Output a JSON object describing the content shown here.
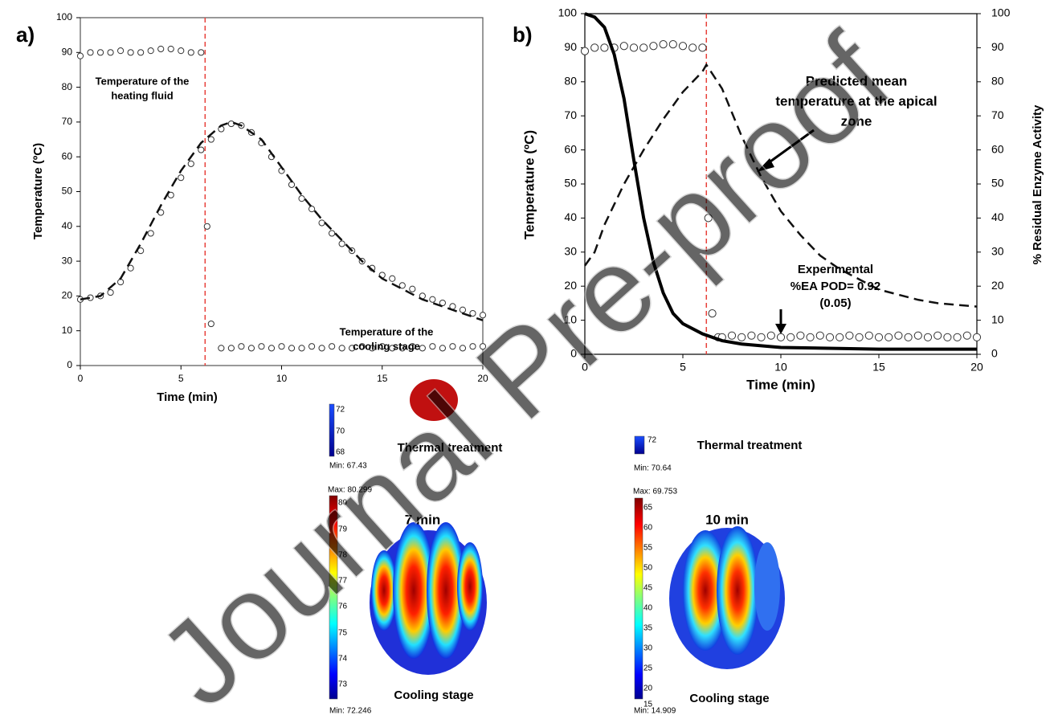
{
  "chart_data": [
    {
      "type": "line",
      "panel_label": "a)",
      "xlabel": "Time (min)",
      "ylabel": "Temperature (ºC)",
      "xlim": [
        0,
        20
      ],
      "ylim": [
        0,
        100
      ],
      "xticks": [
        0,
        5,
        10,
        15,
        20
      ],
      "yticks": [
        0,
        10,
        20,
        30,
        40,
        50,
        60,
        70,
        80,
        90,
        100
      ],
      "vline": {
        "x": 6.2,
        "color": "#e8413a"
      },
      "annotations": [
        [
          "Temperature of the",
          "heating fluid"
        ],
        [
          "Temperature of the",
          "cooling stage"
        ]
      ],
      "series": [
        {
          "style": "circles",
          "color": "#333333",
          "x": [
            0,
            0.5,
            1,
            1.5,
            2,
            2.5,
            3,
            3.5,
            4,
            4.5,
            5,
            5.5,
            6
          ],
          "values": [
            89,
            90,
            90,
            90,
            90.5,
            90,
            90,
            90.5,
            91,
            91,
            90.5,
            90,
            90
          ]
        },
        {
          "style": "circles",
          "color": "#333333",
          "x": [
            0,
            0.5,
            1,
            1.5,
            2,
            2.5,
            3,
            3.5,
            4,
            4.5,
            5,
            5.5,
            6,
            6.5,
            7,
            7.5,
            8,
            8.5,
            9,
            9.5,
            10,
            10.5,
            11,
            11.5,
            12,
            12.5,
            13,
            13.5,
            14,
            14.5,
            15,
            15.5,
            16,
            16.5,
            17,
            17.5,
            18,
            18.5,
            19,
            19.5,
            20
          ],
          "values": [
            19,
            19.5,
            20,
            21,
            24,
            28,
            33,
            38,
            44,
            49,
            54,
            58,
            62,
            65,
            68,
            69.5,
            69,
            67,
            64,
            60,
            56,
            52,
            48,
            45,
            41,
            38,
            35,
            33,
            30,
            28,
            26,
            25,
            23,
            22,
            20,
            19,
            18,
            17,
            16,
            15,
            14.5
          ]
        },
        {
          "style": "circles",
          "color": "#333333",
          "x": [
            6.3,
            6.5
          ],
          "values": [
            40,
            12
          ]
        },
        {
          "style": "circles",
          "color": "#333333",
          "x": [
            7,
            7.5,
            8,
            8.5,
            9,
            9.5,
            10,
            10.5,
            11,
            11.5,
            12,
            12.5,
            13,
            13.5,
            14,
            14.5,
            15,
            15.5,
            16,
            16.5,
            17,
            17.5,
            18,
            18.5,
            19,
            19.5,
            20
          ],
          "values": [
            5,
            5,
            5.5,
            5,
            5.5,
            5,
            5.5,
            5,
            5,
            5.5,
            5,
            5.5,
            5,
            5,
            5.5,
            5,
            5.5,
            5,
            5,
            5.5,
            5,
            5.5,
            5,
            5.5,
            5,
            5.5,
            5.5
          ]
        },
        {
          "style": "dashed",
          "color": "#111111",
          "x": [
            0,
            1,
            2,
            3,
            4,
            5,
            6,
            7,
            7.5,
            8,
            9,
            10,
            11,
            12,
            13,
            14,
            15,
            16,
            17,
            18,
            19,
            20
          ],
          "values": [
            19,
            20,
            25,
            35,
            46,
            56,
            64,
            69,
            70,
            69,
            65,
            57,
            49,
            42,
            36,
            30,
            25,
            22,
            19,
            17,
            15,
            13
          ]
        }
      ]
    },
    {
      "type": "line",
      "panel_label": "b)",
      "xlabel": "Time (min)",
      "ylabel": "Temperature (ºC)",
      "y2label": "% Residual Enzyme Activity",
      "xlim": [
        0,
        20
      ],
      "ylim": [
        0,
        100
      ],
      "y2lim": [
        0,
        100
      ],
      "xticks": [
        0,
        5,
        10,
        15,
        20
      ],
      "yticks": [
        0,
        10,
        20,
        30,
        40,
        50,
        60,
        70,
        80,
        90,
        100
      ],
      "y2ticks": [
        0,
        10,
        20,
        30,
        40,
        50,
        60,
        70,
        80,
        90,
        100
      ],
      "vline": {
        "x": 6.2,
        "color": "#e8413a"
      },
      "annotations": [
        [
          "Predicted mean",
          "temperature at the apical",
          "zone"
        ],
        [
          "Experimental",
          "%EA POD= 0.92",
          "(0.05)"
        ]
      ],
      "series": [
        {
          "style": "circles",
          "color": "#333333",
          "x": [
            0,
            0.5,
            1,
            1.5,
            2,
            2.5,
            3,
            3.5,
            4,
            4.5,
            5,
            5.5,
            6,
            6.3,
            6.5,
            6.8,
            7,
            7.5,
            8,
            8.5,
            9,
            9.5,
            10,
            10.5,
            11,
            11.5,
            12,
            12.5,
            13,
            13.5,
            14,
            14.5,
            15,
            15.5,
            16,
            16.5,
            17,
            17.5,
            18,
            18.5,
            19,
            19.5,
            20
          ],
          "values": [
            89,
            90,
            90,
            90,
            90.5,
            90,
            90,
            90.5,
            91,
            91,
            90.5,
            90,
            90,
            40,
            12,
            5,
            5,
            5.5,
            5,
            5.5,
            5,
            5.5,
            5,
            5,
            5.5,
            5,
            5.5,
            5,
            5,
            5.5,
            5,
            5.5,
            5,
            5,
            5.5,
            5,
            5.5,
            5,
            5.5,
            5,
            5,
            5.5,
            5
          ]
        },
        {
          "style": "dashed",
          "color": "#111111",
          "x": [
            0,
            0.5,
            1,
            2,
            3,
            4,
            5,
            6,
            6.2,
            7,
            8,
            9,
            10,
            11,
            12,
            13,
            14,
            15,
            16,
            17,
            18,
            19,
            20
          ],
          "values": [
            26,
            30,
            38,
            50,
            60,
            69,
            77,
            83,
            85,
            78,
            64,
            52,
            42,
            35,
            29,
            25,
            22,
            19,
            17.5,
            16,
            15,
            14.5,
            14
          ]
        },
        {
          "style": "solid",
          "color": "#000000",
          "axis": "y2",
          "x": [
            0,
            0.5,
            1,
            1.5,
            2,
            2.5,
            3,
            3.5,
            4,
            4.5,
            5,
            6,
            7,
            8,
            10,
            15,
            20
          ],
          "values": [
            100,
            99,
            96,
            88,
            75,
            57,
            40,
            27,
            18,
            12,
            9,
            6,
            4,
            3,
            2,
            1.5,
            1.5
          ]
        }
      ]
    }
  ],
  "panels": [
    {
      "ticks": [
        "72",
        "70",
        "68"
      ],
      "min": "Min: 67.43",
      "caption": "Thermal treatment"
    },
    {
      "ticks": [
        "72"
      ],
      "min": "Min: 70.64",
      "caption": "Thermal treatment"
    },
    {
      "max": "Max: 80.299",
      "ticks": [
        "80",
        "79",
        "78",
        "77",
        "76",
        "75",
        "74",
        "73"
      ],
      "min": "Min: 72.246",
      "time": "7 min",
      "caption": "Cooling stage"
    },
    {
      "max": "Max: 69.753",
      "ticks": [
        "65",
        "60",
        "55",
        "50",
        "45",
        "40",
        "35",
        "30",
        "25",
        "20",
        "15"
      ],
      "min": "Min: 14.909",
      "time": "10 min",
      "caption": "Cooling stage"
    }
  ],
  "watermark": "Journal Pre-proof"
}
